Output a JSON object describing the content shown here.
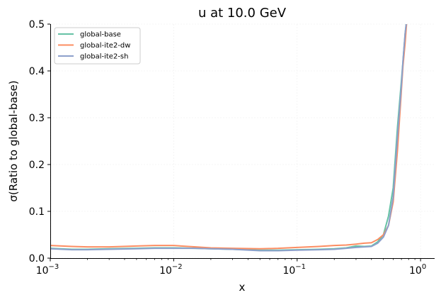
{
  "chart_data": {
    "type": "line",
    "title": "u at 10.0 GeV",
    "xlabel": "x",
    "ylabel": "σ(Ratio to global-base)",
    "xscale": "log",
    "xlim": [
      0.001,
      1.3
    ],
    "ylim": [
      0,
      0.5
    ],
    "grid": true,
    "legend_position": "top-left",
    "xticks": [
      {
        "value": 0.001,
        "base": "10",
        "exp": "−3"
      },
      {
        "value": 0.01,
        "base": "10",
        "exp": "−2"
      },
      {
        "value": 0.1,
        "base": "10",
        "exp": "−1"
      },
      {
        "value": 1,
        "base": "10",
        "exp": "0"
      }
    ],
    "yticks": [
      {
        "value": 0.0,
        "label": "0.0"
      },
      {
        "value": 0.1,
        "label": "0.1"
      },
      {
        "value": 0.2,
        "label": "0.2"
      },
      {
        "value": 0.3,
        "label": "0.3"
      },
      {
        "value": 0.4,
        "label": "0.4"
      },
      {
        "value": 0.5,
        "label": "0.5"
      }
    ],
    "series": [
      {
        "name": "global-base",
        "color": "#66c2a5",
        "x": [
          0.001,
          0.0015,
          0.002,
          0.003,
          0.005,
          0.007,
          0.01,
          0.015,
          0.02,
          0.03,
          0.05,
          0.07,
          0.1,
          0.15,
          0.2,
          0.25,
          0.3,
          0.35,
          0.4,
          0.45,
          0.5,
          0.55,
          0.6,
          0.65,
          0.7,
          0.72,
          0.75,
          0.78
        ],
        "values": [
          0.021,
          0.019,
          0.019,
          0.02,
          0.021,
          0.022,
          0.022,
          0.021,
          0.02,
          0.019,
          0.017,
          0.017,
          0.018,
          0.019,
          0.02,
          0.022,
          0.026,
          0.025,
          0.026,
          0.035,
          0.05,
          0.09,
          0.15,
          0.28,
          0.38,
          0.42,
          0.48,
          0.52
        ]
      },
      {
        "name": "global-ite2-dw",
        "color": "#fc8d62",
        "x": [
          0.001,
          0.0015,
          0.002,
          0.003,
          0.005,
          0.007,
          0.01,
          0.015,
          0.02,
          0.03,
          0.05,
          0.07,
          0.1,
          0.15,
          0.2,
          0.25,
          0.3,
          0.35,
          0.4,
          0.45,
          0.5,
          0.55,
          0.6,
          0.65,
          0.7,
          0.72,
          0.75,
          0.78
        ],
        "values": [
          0.027,
          0.025,
          0.024,
          0.024,
          0.026,
          0.027,
          0.027,
          0.024,
          0.022,
          0.021,
          0.02,
          0.021,
          0.023,
          0.025,
          0.027,
          0.028,
          0.03,
          0.032,
          0.033,
          0.04,
          0.05,
          0.07,
          0.12,
          0.23,
          0.36,
          0.41,
          0.46,
          0.52
        ]
      },
      {
        "name": "global-ite2-sh",
        "color": "#8da0cb",
        "x": [
          0.001,
          0.0015,
          0.002,
          0.003,
          0.005,
          0.007,
          0.01,
          0.015,
          0.02,
          0.03,
          0.05,
          0.07,
          0.1,
          0.15,
          0.2,
          0.25,
          0.3,
          0.35,
          0.4,
          0.45,
          0.5,
          0.55,
          0.6,
          0.65,
          0.7,
          0.72,
          0.75,
          0.78
        ],
        "values": [
          0.02,
          0.018,
          0.018,
          0.019,
          0.02,
          0.021,
          0.021,
          0.021,
          0.02,
          0.019,
          0.016,
          0.016,
          0.017,
          0.018,
          0.019,
          0.021,
          0.023,
          0.024,
          0.025,
          0.032,
          0.045,
          0.07,
          0.13,
          0.26,
          0.37,
          0.42,
          0.48,
          0.52
        ]
      }
    ]
  }
}
